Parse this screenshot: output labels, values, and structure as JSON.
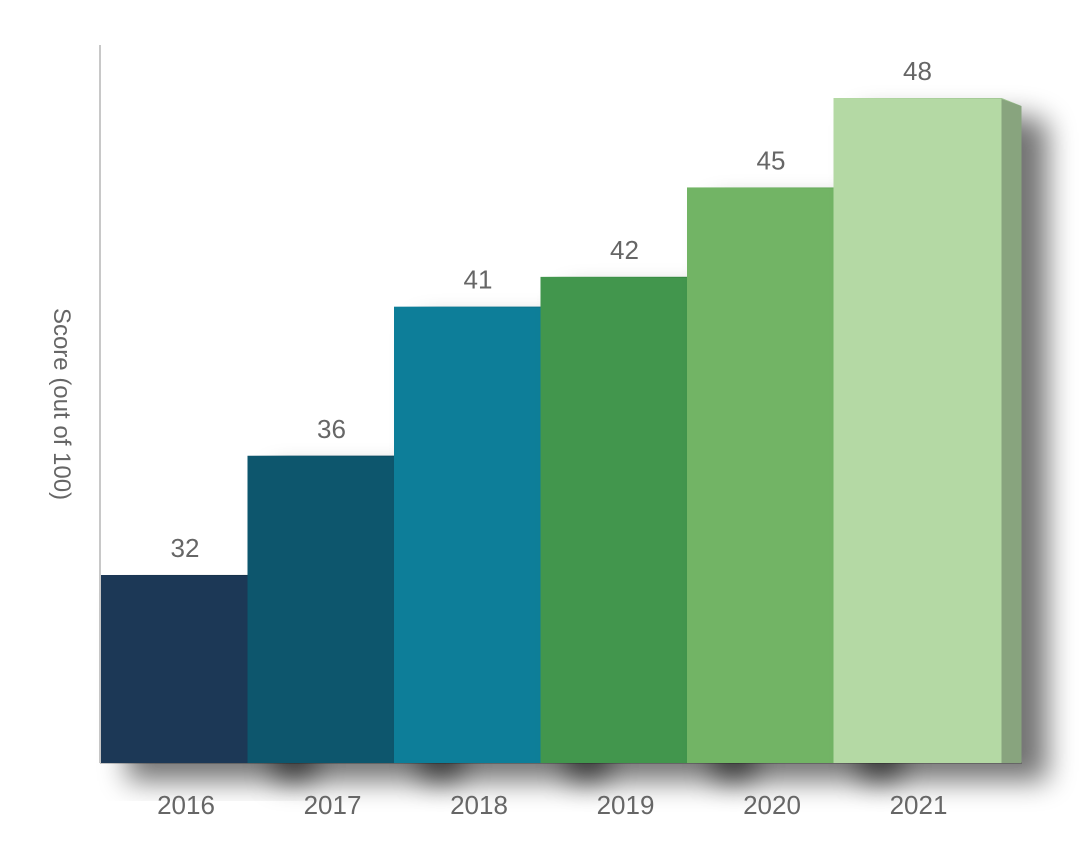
{
  "chart_data": {
    "type": "bar",
    "title": "",
    "xlabel": "",
    "ylabel": "Score (out of 100)",
    "categories": [
      "2016",
      "2017",
      "2018",
      "2019",
      "2020",
      "2021"
    ],
    "values": [
      32,
      36,
      41,
      42,
      45,
      48
    ],
    "data_labels": [
      "32",
      "36",
      "41",
      "42",
      "45",
      "48"
    ],
    "ylim": [
      0,
      55
    ],
    "grid": false,
    "legend": "none",
    "style": "3d-bars-with-shadow",
    "bar_colors": [
      {
        "front": "#1d3856",
        "side": "#0f2239",
        "top": "#16304a"
      },
      {
        "front": "#11566d",
        "side": "#063a4c",
        "top": "#0c4a5e"
      },
      {
        "front": "#0e7e99",
        "side": "#07607a",
        "top": "#0c6f88"
      },
      {
        "front": "#43964d",
        "side": "#2b7335",
        "top": "#358641"
      },
      {
        "front": "#72b465",
        "side": "#569651",
        "top": "#64a55a"
      },
      {
        "front": "#b4d9a4",
        "side": "#88a47e",
        "top": "#a3c896"
      }
    ]
  }
}
